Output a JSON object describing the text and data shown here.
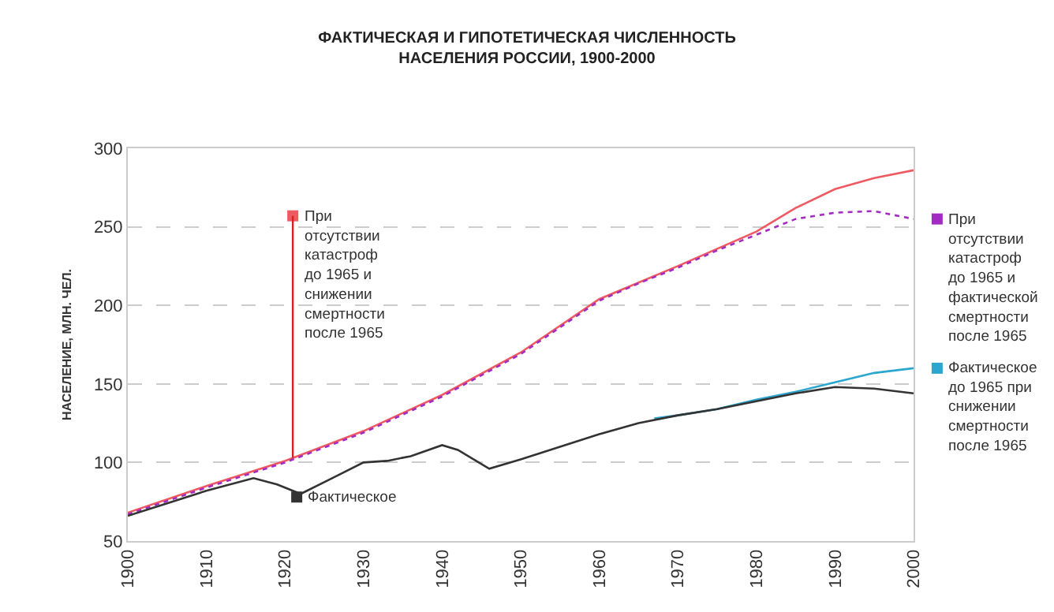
{
  "chart_data": {
    "type": "line",
    "title": "ФАКТИЧЕСКАЯ И ГИПОТЕТИЧЕСКАЯ ЧИСЛЕННОСТЬ\nНАСЕЛЕНИЯ РОССИИ, 1900-2000",
    "ylabel": "НАСЕЛЕНИЕ, МЛН. ЧЕЛ.",
    "xlim": [
      1900,
      2000
    ],
    "xticks": [
      1900,
      1910,
      1920,
      1930,
      1940,
      1950,
      1960,
      1970,
      1980,
      1990,
      2000
    ],
    "ylim": [
      50,
      300
    ],
    "yticks": [
      50,
      100,
      150,
      200,
      250,
      300
    ],
    "grid": "y",
    "legend": "right",
    "marker": "none",
    "series": [
      {
        "name": "При отсутствии катастроф до 1965 и снижении смертности после 1965",
        "color": "#ef5a62",
        "line_style": "solid",
        "x": [
          1900,
          1910,
          1920,
          1930,
          1940,
          1950,
          1960,
          1970,
          1980,
          1985,
          1990,
          1995,
          2000
        ],
        "values": [
          68,
          85,
          101,
          120,
          143,
          170,
          204,
          225,
          247,
          262,
          274,
          281,
          286
        ]
      },
      {
        "name": "При отсутствии катастроф до 1965 и фактической смертности после 1965",
        "color": "#a32bc2",
        "line_style": "dotted",
        "x": [
          1900,
          1910,
          1920,
          1930,
          1940,
          1950,
          1960,
          1965,
          1970,
          1975,
          1980,
          1985,
          1990,
          1995,
          2000
        ],
        "values": [
          67,
          84,
          100,
          119,
          142,
          169,
          203,
          214,
          224,
          235,
          245,
          255,
          259,
          260,
          255
        ]
      },
      {
        "name": "Фактическое до 1965 при снижении смертности после 1965",
        "color": "#2ba6cf",
        "line_style": "solid",
        "x": [
          1967,
          1970,
          1975,
          1980,
          1985,
          1990,
          1995,
          2000
        ],
        "values": [
          128,
          130,
          134,
          140,
          145,
          151,
          157,
          160
        ]
      },
      {
        "name": "Фактическое",
        "color": "#333333",
        "line_style": "solid",
        "x": [
          1900,
          1905,
          1910,
          1916,
          1919,
          1922,
          1926,
          1930,
          1933,
          1936,
          1940,
          1942,
          1946,
          1950,
          1955,
          1960,
          1965,
          1970,
          1975,
          1980,
          1985,
          1990,
          1995,
          2000
        ],
        "values": [
          66,
          74,
          82,
          90,
          86,
          80,
          90,
          100,
          101,
          104,
          111,
          108,
          96,
          102,
          110,
          118,
          125,
          130,
          134,
          139,
          144,
          148,
          147,
          144
        ]
      }
    ]
  }
}
